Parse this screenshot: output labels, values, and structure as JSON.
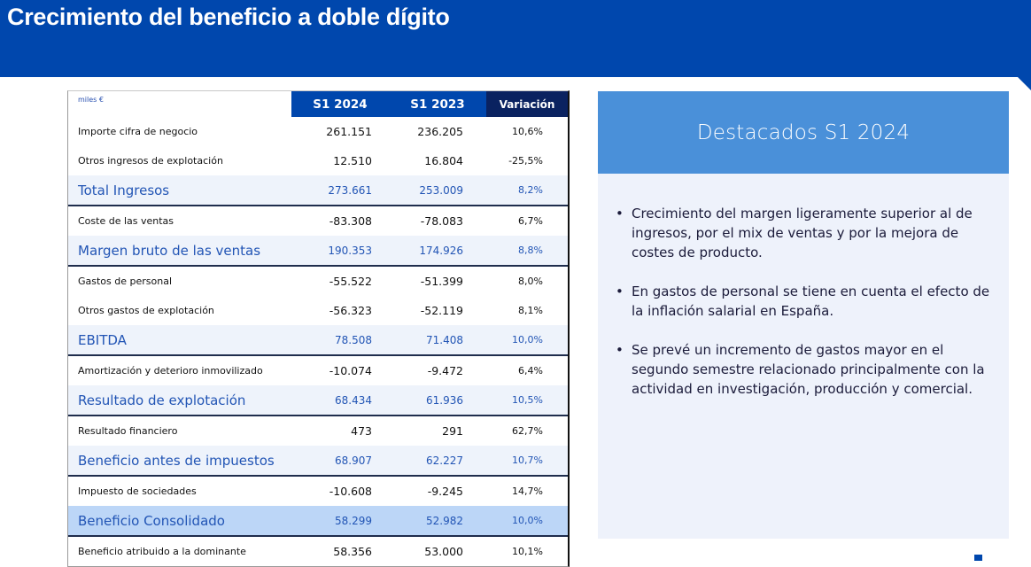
{
  "header": {
    "title": "Crecimiento del beneficio a doble dígito"
  },
  "table": {
    "unit_label": "miles €",
    "columns": [
      "S1 2024",
      "S1 2023",
      "Variación"
    ],
    "rows": [
      {
        "label": "Importe cifra de negocio",
        "s1_2024": "261.151",
        "s1_2023": "236.205",
        "variacion": "10,6%",
        "style": "normal"
      },
      {
        "label": "Otros ingresos de explotación",
        "s1_2024": "12.510",
        "s1_2023": "16.804",
        "variacion": "-25,5%",
        "style": "normal"
      },
      {
        "label": "Total Ingresos",
        "s1_2024": "273.661",
        "s1_2023": "253.009",
        "variacion": "8,2%",
        "style": "total"
      },
      {
        "label": "Coste de las ventas",
        "s1_2024": "-83.308",
        "s1_2023": "-78.083",
        "variacion": "6,7%",
        "style": "normal"
      },
      {
        "label": "Margen bruto de las ventas",
        "s1_2024": "190.353",
        "s1_2023": "174.926",
        "variacion": "8,8%",
        "style": "total"
      },
      {
        "label": "Gastos  de personal",
        "s1_2024": "-55.522",
        "s1_2023": "-51.399",
        "variacion": "8,0%",
        "style": "normal"
      },
      {
        "label": "Otros gastos de explotación",
        "s1_2024": "-56.323",
        "s1_2023": "-52.119",
        "variacion": "8,1%",
        "style": "normal"
      },
      {
        "label": "EBITDA",
        "s1_2024": "78.508",
        "s1_2023": "71.408",
        "variacion": "10,0%",
        "style": "total"
      },
      {
        "label": "Amortización y deterioro inmovilizado",
        "s1_2024": "-10.074",
        "s1_2023": "-9.472",
        "variacion": "6,4%",
        "style": "normal"
      },
      {
        "label": "Resultado de explotación",
        "s1_2024": "68.434",
        "s1_2023": "61.936",
        "variacion": "10,5%",
        "style": "total"
      },
      {
        "label": "Resultado financiero",
        "s1_2024": "473",
        "s1_2023": "291",
        "variacion": "62,7%",
        "style": "normal"
      },
      {
        "label": "Beneficio antes de impuestos",
        "s1_2024": "68.907",
        "s1_2023": "62.227",
        "variacion": "10,7%",
        "style": "total"
      },
      {
        "label": "Impuesto de sociedades",
        "s1_2024": "-10.608",
        "s1_2023": "-9.245",
        "variacion": "14,7%",
        "style": "normal"
      },
      {
        "label": "Beneficio Consolidado",
        "s1_2024": "58.299",
        "s1_2023": "52.982",
        "variacion": "10,0%",
        "style": "highlight"
      },
      {
        "label": "Beneficio atribuido a la dominante",
        "s1_2024": "58.356",
        "s1_2023": "53.000",
        "variacion": "10,1%",
        "style": "normal"
      }
    ]
  },
  "highlights": {
    "title": "Destacados S1 2024",
    "bullet_glyph": "•",
    "items": [
      "Crecimiento del margen ligeramente superior al de ingresos, por el mix de ventas y por la mejora de costes de producto.",
      "En gastos de personal se tiene en cuenta el efecto de la inflación salarial en España.",
      "Se prevé un incremento de gastos mayor en el segundo semestre relacionado principalmente con la actividad en investigación, producción y comercial."
    ]
  },
  "colors": {
    "brand_blue": "#0047AD",
    "dark_navy": "#0A2260",
    "panel_header": "#4A90D9",
    "panel_body": "#EEF2FB",
    "total_row": "#EEF3FB",
    "highlight_row": "#BCD6F7",
    "total_text": "#2255B5"
  }
}
